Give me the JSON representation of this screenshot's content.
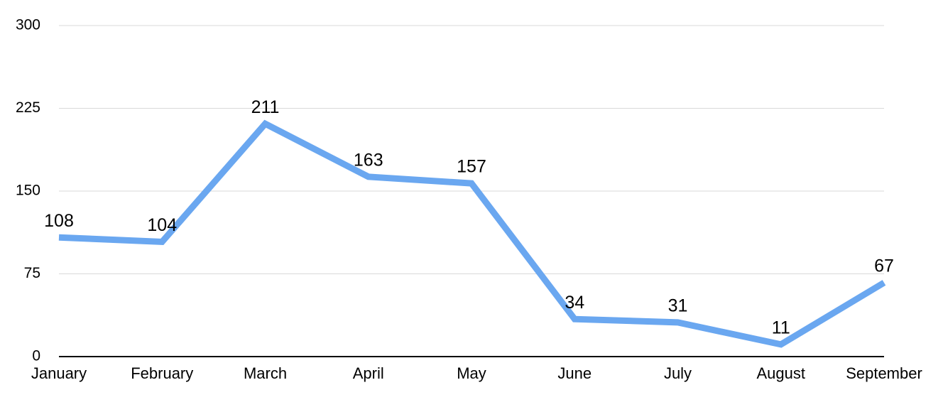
{
  "chart_data": {
    "type": "line",
    "categories": [
      "January",
      "February",
      "March",
      "April",
      "May",
      "June",
      "July",
      "August",
      "September"
    ],
    "values": [
      108,
      104,
      211,
      163,
      157,
      34,
      31,
      11,
      67
    ],
    "color": "#6aa7f0",
    "ylim": [
      0,
      300
    ],
    "yticks": [
      0,
      75,
      150,
      225,
      300
    ],
    "grid": true,
    "data_labels": true
  }
}
